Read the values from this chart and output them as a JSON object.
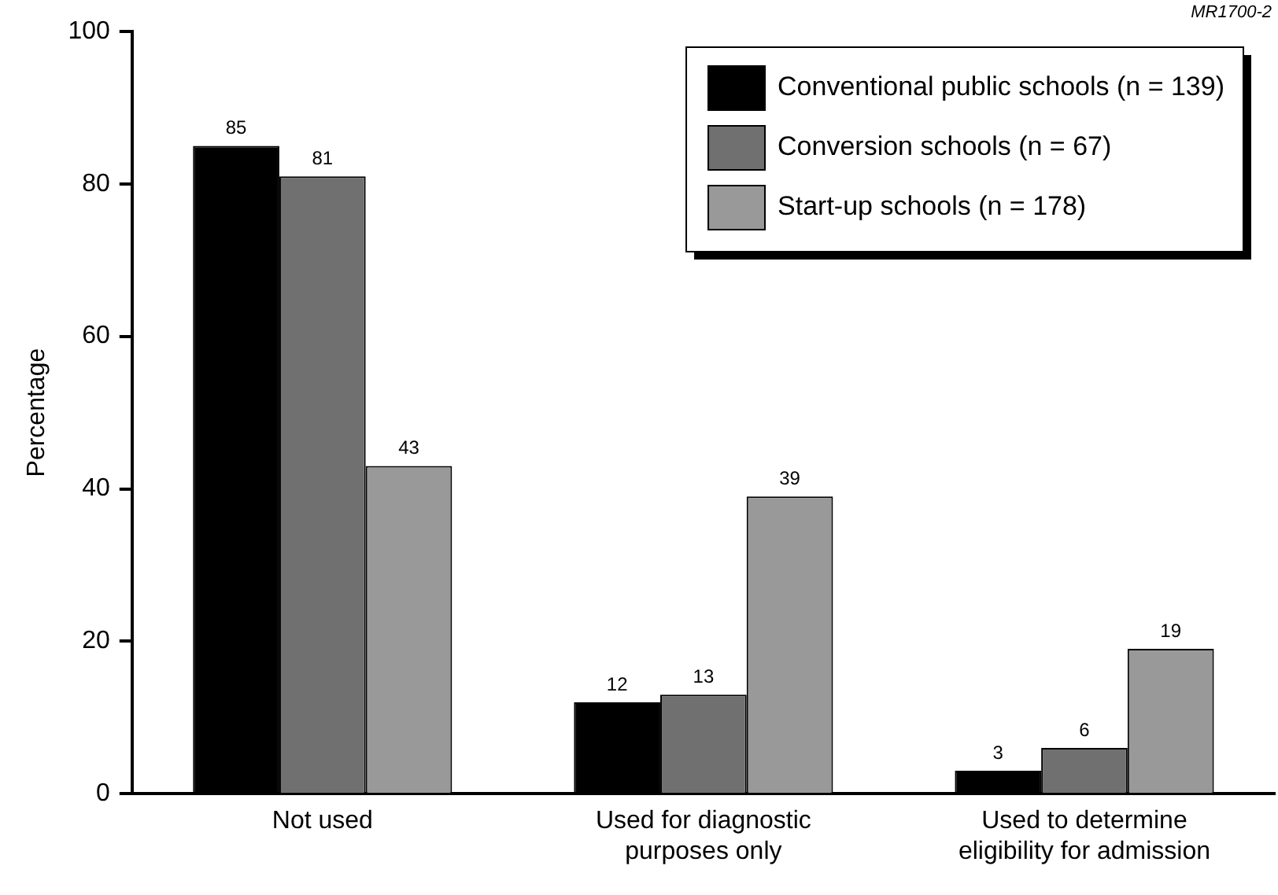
{
  "chart_data": {
    "type": "bar",
    "ylabel": "Percentage",
    "annotations": [
      "MR1700-2"
    ],
    "categories": [
      "Not used",
      "Used for diagnostic\npurposes only",
      "Used to determine\neligibility for admission"
    ],
    "series": [
      {
        "name": "Conventional public schools (n = 139)",
        "color": "#000000",
        "values": [
          85,
          12,
          3
        ]
      },
      {
        "name": "Conversion schools (n = 67)",
        "color": "#707070",
        "values": [
          81,
          13,
          6
        ]
      },
      {
        "name": "Start-up schools (n = 178)",
        "color": "#999999",
        "values": [
          43,
          39,
          19
        ]
      }
    ],
    "ylim": [
      0,
      100
    ],
    "yticks": [
      0,
      20,
      40,
      60,
      80,
      100
    ],
    "grid": false,
    "legend": "top right",
    "data_labels": true
  }
}
